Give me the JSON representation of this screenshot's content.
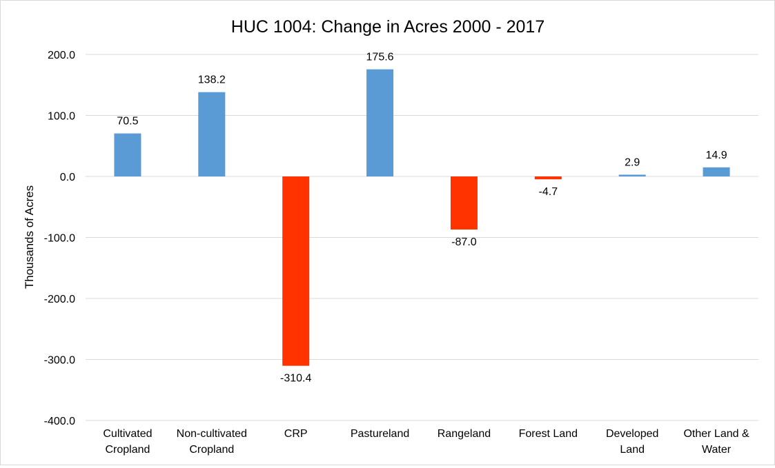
{
  "chart_data": {
    "type": "bar",
    "title": "HUC 1004: Change in Acres 2000 - 2017",
    "xlabel": "",
    "ylabel": "Thousands of Acres",
    "ylim": [
      -400,
      200
    ],
    "yticks": [
      "200.0",
      "100.0",
      "0.0",
      "-100.0",
      "-200.0",
      "-300.0",
      "-400.0"
    ],
    "ytick_values": [
      200,
      100,
      0,
      -100,
      -200,
      -300,
      -400
    ],
    "grid": true,
    "legend": "none",
    "categories": [
      [
        "Cultivated",
        "Cropland"
      ],
      [
        "Non-cultivated",
        "Cropland"
      ],
      [
        "CRP"
      ],
      [
        "Pastureland"
      ],
      [
        "Rangeland"
      ],
      [
        "Forest Land"
      ],
      [
        "Developed",
        "Land"
      ],
      [
        "Other Land &",
        "Water"
      ]
    ],
    "values": [
      70.5,
      138.2,
      -310.4,
      175.6,
      -87.0,
      -4.7,
      2.9,
      14.9
    ],
    "data_labels": [
      "70.5",
      "138.2",
      "-310.4",
      "175.6",
      "-87.0",
      "-4.7",
      "2.9",
      "14.9"
    ],
    "colors": {
      "positive": "#5b9bd5",
      "negative": "#ff3300",
      "grid": "#d9d9d9",
      "axis_text": "#000000"
    }
  }
}
